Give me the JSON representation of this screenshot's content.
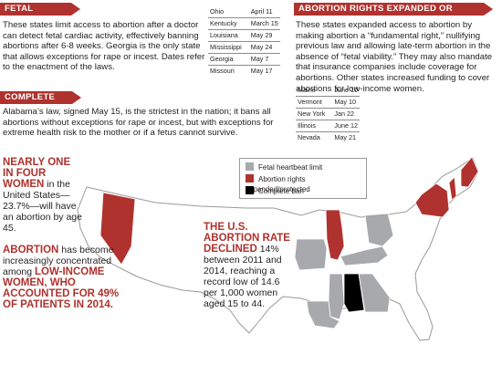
{
  "sections": {
    "fetal_heartbeat": {
      "heading": "FETAL HEARTBEAT",
      "body": "These states limit access to abortion after a doctor can detect fetal cardiac activity, effectively banning abortions after 6-8 weeks. Georgia is the only state that allows exceptions for rape or incest. Dates refer to the enactment of the laws.",
      "states": [
        {
          "state": "Ohio",
          "date": "April 11"
        },
        {
          "state": "Kentucky",
          "date": "March 15"
        },
        {
          "state": "Louisiana",
          "date": "May 29"
        },
        {
          "state": "Mississippi",
          "date": "May 24"
        },
        {
          "state": "Georgia",
          "date": "May 7"
        },
        {
          "state": "Missouri",
          "date": "May 17"
        }
      ]
    },
    "rights_expanded": {
      "heading": "ABORTION RIGHTS EXPANDED OR PROTECTED",
      "body": "These states expanded access to abortion by making abortion a “fundamental right,” nullifying previous law and allowing late-term abortion in the absence of “fetal viability.” They may also mandate that insurance companies include coverage for abortions. Other states increased funding to cover abortions for low-income women.",
      "states": [
        {
          "state": "Maine",
          "date": "June 10"
        },
        {
          "state": "Vermont",
          "date": "May 10"
        },
        {
          "state": "New York",
          "date": "Jan 22"
        },
        {
          "state": "Illinois",
          "date": "June 12"
        },
        {
          "state": "Nevada",
          "date": "May 21"
        }
      ]
    },
    "complete_ban": {
      "heading": "COMPLETE BAN",
      "body": "Alabama’s law, signed May 15, is the strictest in the nation; it bans all abortions without exceptions for rape or incest, but with exceptions for extreme health risk to the mother or if a fetus cannot survive."
    }
  },
  "stats": {
    "one_in_four": {
      "highlight": "NEARLY ONE IN FOUR WOMEN",
      "rest": " in the United States— 23.7%—will have an abortion by age 45."
    },
    "concentrated": {
      "highlight_1": "ABORTION",
      "middle": " has become increasingly concentrated among ",
      "highlight_2": "LOW-INCOME WOMEN, WHO ACCOUNTED FOR 49% OF PATIENTS IN 2014."
    },
    "rate_declined": {
      "highlight": "THE U.S. ABORTION RATE DECLINED",
      "rest": " 14% between 2011 and 2014, reaching a record low of 14.6 per 1,000 women aged 15 to 44."
    }
  },
  "legend": {
    "items": [
      {
        "label": "Fetal heartbeat limit",
        "color": "#a7a9ac"
      },
      {
        "label": "Abortion rights expanded/protected",
        "color": "#b0322e"
      },
      {
        "label": "Complete ban",
        "color": "#000000"
      }
    ]
  },
  "colors": {
    "accent": "#b0322e",
    "heartbeat": "#a7a9ac",
    "ban": "#000000",
    "land": "#ffffff",
    "border": "#9a9a9a"
  }
}
